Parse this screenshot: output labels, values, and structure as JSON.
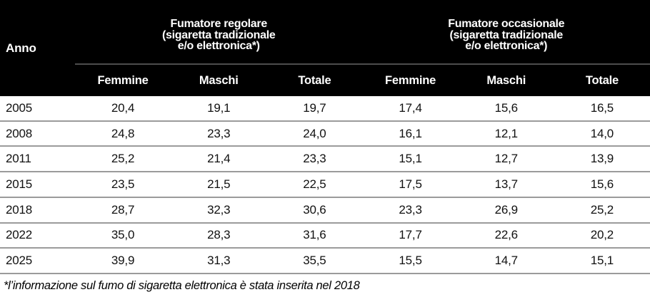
{
  "table": {
    "anno_header": "Anno",
    "groups": [
      {
        "title_lines": [
          "Fumatore regolare",
          "(sigaretta tradizionale",
          "e/o elettronica*)"
        ]
      },
      {
        "title_lines": [
          "Fumatore occasionale",
          "(sigaretta tradizionale",
          "e/o elettronica*)"
        ]
      }
    ],
    "sub_headers": [
      "Femmine",
      "Maschi",
      "Totale",
      "Femmine",
      "Maschi",
      "Totale"
    ],
    "rows": [
      {
        "anno": "2005",
        "values": [
          "20,4",
          "19,1",
          "19,7",
          "17,4",
          "15,6",
          "16,5"
        ]
      },
      {
        "anno": "2008",
        "values": [
          "24,8",
          "23,3",
          "24,0",
          "16,1",
          "12,1",
          "14,0"
        ]
      },
      {
        "anno": "2011",
        "values": [
          "25,2",
          "21,4",
          "23,3",
          "15,1",
          "12,7",
          "13,9"
        ]
      },
      {
        "anno": "2015",
        "values": [
          "23,5",
          "21,5",
          "22,5",
          "17,5",
          "13,7",
          "15,6"
        ]
      },
      {
        "anno": "2018",
        "values": [
          "28,7",
          "32,3",
          "30,6",
          "23,3",
          "26,9",
          "25,2"
        ]
      },
      {
        "anno": "2022",
        "values": [
          "35,0",
          "28,3",
          "31,6",
          "17,7",
          "22,6",
          "20,2"
        ]
      },
      {
        "anno": "2025",
        "values": [
          "39,9",
          "31,3",
          "35,5",
          "15,5",
          "14,7",
          "15,1"
        ]
      }
    ],
    "footnote": "*l’informazione sul fumo di sigaretta elettronica è stata inserita nel 2018"
  },
  "colors": {
    "header_bg": "#000000",
    "header_text": "#ffffff",
    "header_divider": "#4d4d4d",
    "row_divider": "#9b9b9b",
    "body_text": "#111111"
  },
  "chart_data": {
    "type": "table",
    "title": "",
    "row_header": "Anno",
    "column_groups": [
      "Fumatore regolare (sigaretta tradizionale e/o elettronica*)",
      "Fumatore occasionale (sigaretta tradizionale e/o elettronica*)"
    ],
    "columns": [
      "Femmine",
      "Maschi",
      "Totale",
      "Femmine",
      "Maschi",
      "Totale"
    ],
    "x": [
      2005,
      2008,
      2011,
      2015,
      2018,
      2022,
      2025
    ],
    "series": [
      {
        "name": "Fumatore regolare - Femmine",
        "values": [
          20.4,
          24.8,
          25.2,
          23.5,
          28.7,
          35.0,
          39.9
        ]
      },
      {
        "name": "Fumatore regolare - Maschi",
        "values": [
          19.1,
          23.3,
          21.4,
          21.5,
          32.3,
          28.3,
          31.3
        ]
      },
      {
        "name": "Fumatore regolare - Totale",
        "values": [
          19.7,
          24.0,
          23.3,
          22.5,
          30.6,
          31.6,
          35.5
        ]
      },
      {
        "name": "Fumatore occasionale - Femmine",
        "values": [
          17.4,
          16.1,
          15.1,
          17.5,
          23.3,
          17.7,
          15.5
        ]
      },
      {
        "name": "Fumatore occasionale - Maschi",
        "values": [
          15.6,
          12.1,
          12.7,
          13.7,
          26.9,
          22.6,
          14.7
        ]
      },
      {
        "name": "Fumatore occasionale - Totale",
        "values": [
          16.5,
          14.0,
          13.9,
          15.6,
          25.2,
          20.2,
          15.1
        ]
      }
    ],
    "footnote": "*l’informazione sul fumo di sigaretta elettronica è stata inserita nel 2018"
  }
}
